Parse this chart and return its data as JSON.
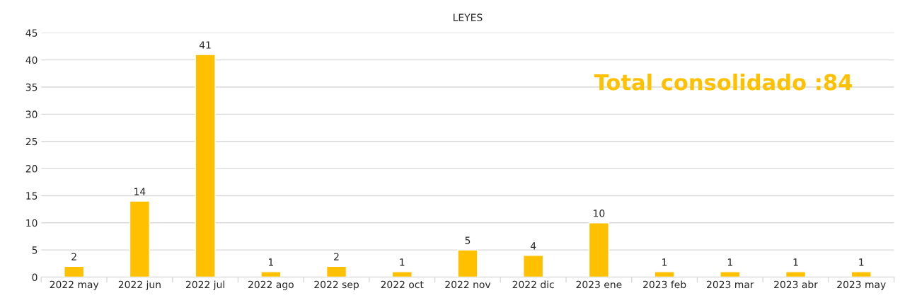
{
  "chart_data": {
    "type": "bar",
    "title": "LEYES",
    "categories": [
      "2022 may",
      "2022 jun",
      "2022 jul",
      "2022 ago",
      "2022 sep",
      "2022 oct",
      "2022 nov",
      "2022 dic",
      "2023 ene",
      "2023 feb",
      "2023 mar",
      "2023 abr",
      "2023 may"
    ],
    "values": [
      2,
      14,
      41,
      1,
      2,
      1,
      5,
      4,
      10,
      1,
      1,
      1,
      1
    ],
    "color": "#ffc000",
    "ylim": [
      0,
      45
    ],
    "yticks": [
      0,
      5,
      10,
      15,
      20,
      25,
      30,
      35,
      40,
      45
    ],
    "grid": "y",
    "data_labels": true,
    "annotations": [
      "Total consolidado :84"
    ]
  }
}
